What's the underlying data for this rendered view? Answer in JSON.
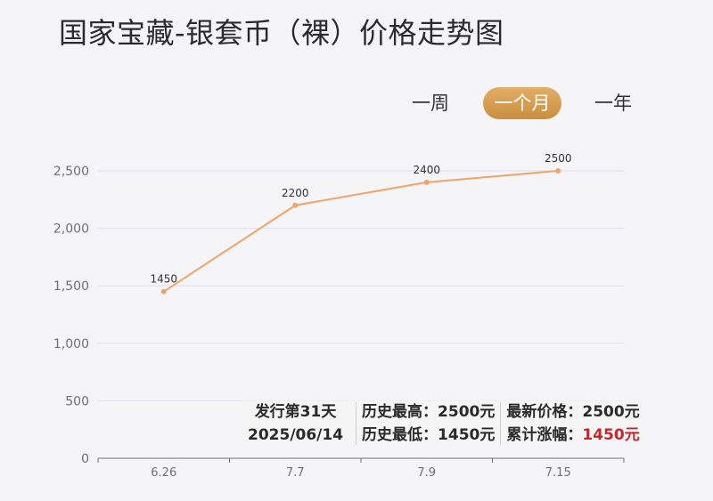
{
  "title": "国家宝藏-银套币（裸）价格走势图",
  "tabs": [
    {
      "label": "一周",
      "active": false
    },
    {
      "label": "一个月",
      "active": true
    },
    {
      "label": "一年",
      "active": false
    }
  ],
  "summary": {
    "issue_days": "发行第31天",
    "issue_date": "2025/06/14",
    "high_label": "历史最高：",
    "high_value": "2500元",
    "low_label": "历史最低：",
    "low_value": "1450元",
    "latest_label": "最新价格：",
    "latest_value": "2500元",
    "change_label": "累计涨幅：",
    "change_value": "1450元"
  },
  "colors": {
    "line": "#f0a36a",
    "accent": "#c98f3f",
    "highlight": "#c1272d"
  },
  "chart_data": {
    "type": "line",
    "title": "国家宝藏-银套币（裸）价格走势图",
    "categories": [
      "6.26",
      "7.7",
      "7.9",
      "7.15"
    ],
    "values": [
      1450,
      2200,
      2400,
      2500
    ],
    "data_labels": [
      "1450",
      "2200",
      "2400",
      "2500"
    ],
    "ylim": [
      0,
      2500
    ],
    "yticks": [
      0,
      500,
      1000,
      1500,
      2000,
      2500
    ],
    "ytick_labels": [
      "0",
      "500",
      "1,000",
      "1,500",
      "2,000",
      "2,500"
    ],
    "grid": true,
    "legend": "none"
  }
}
